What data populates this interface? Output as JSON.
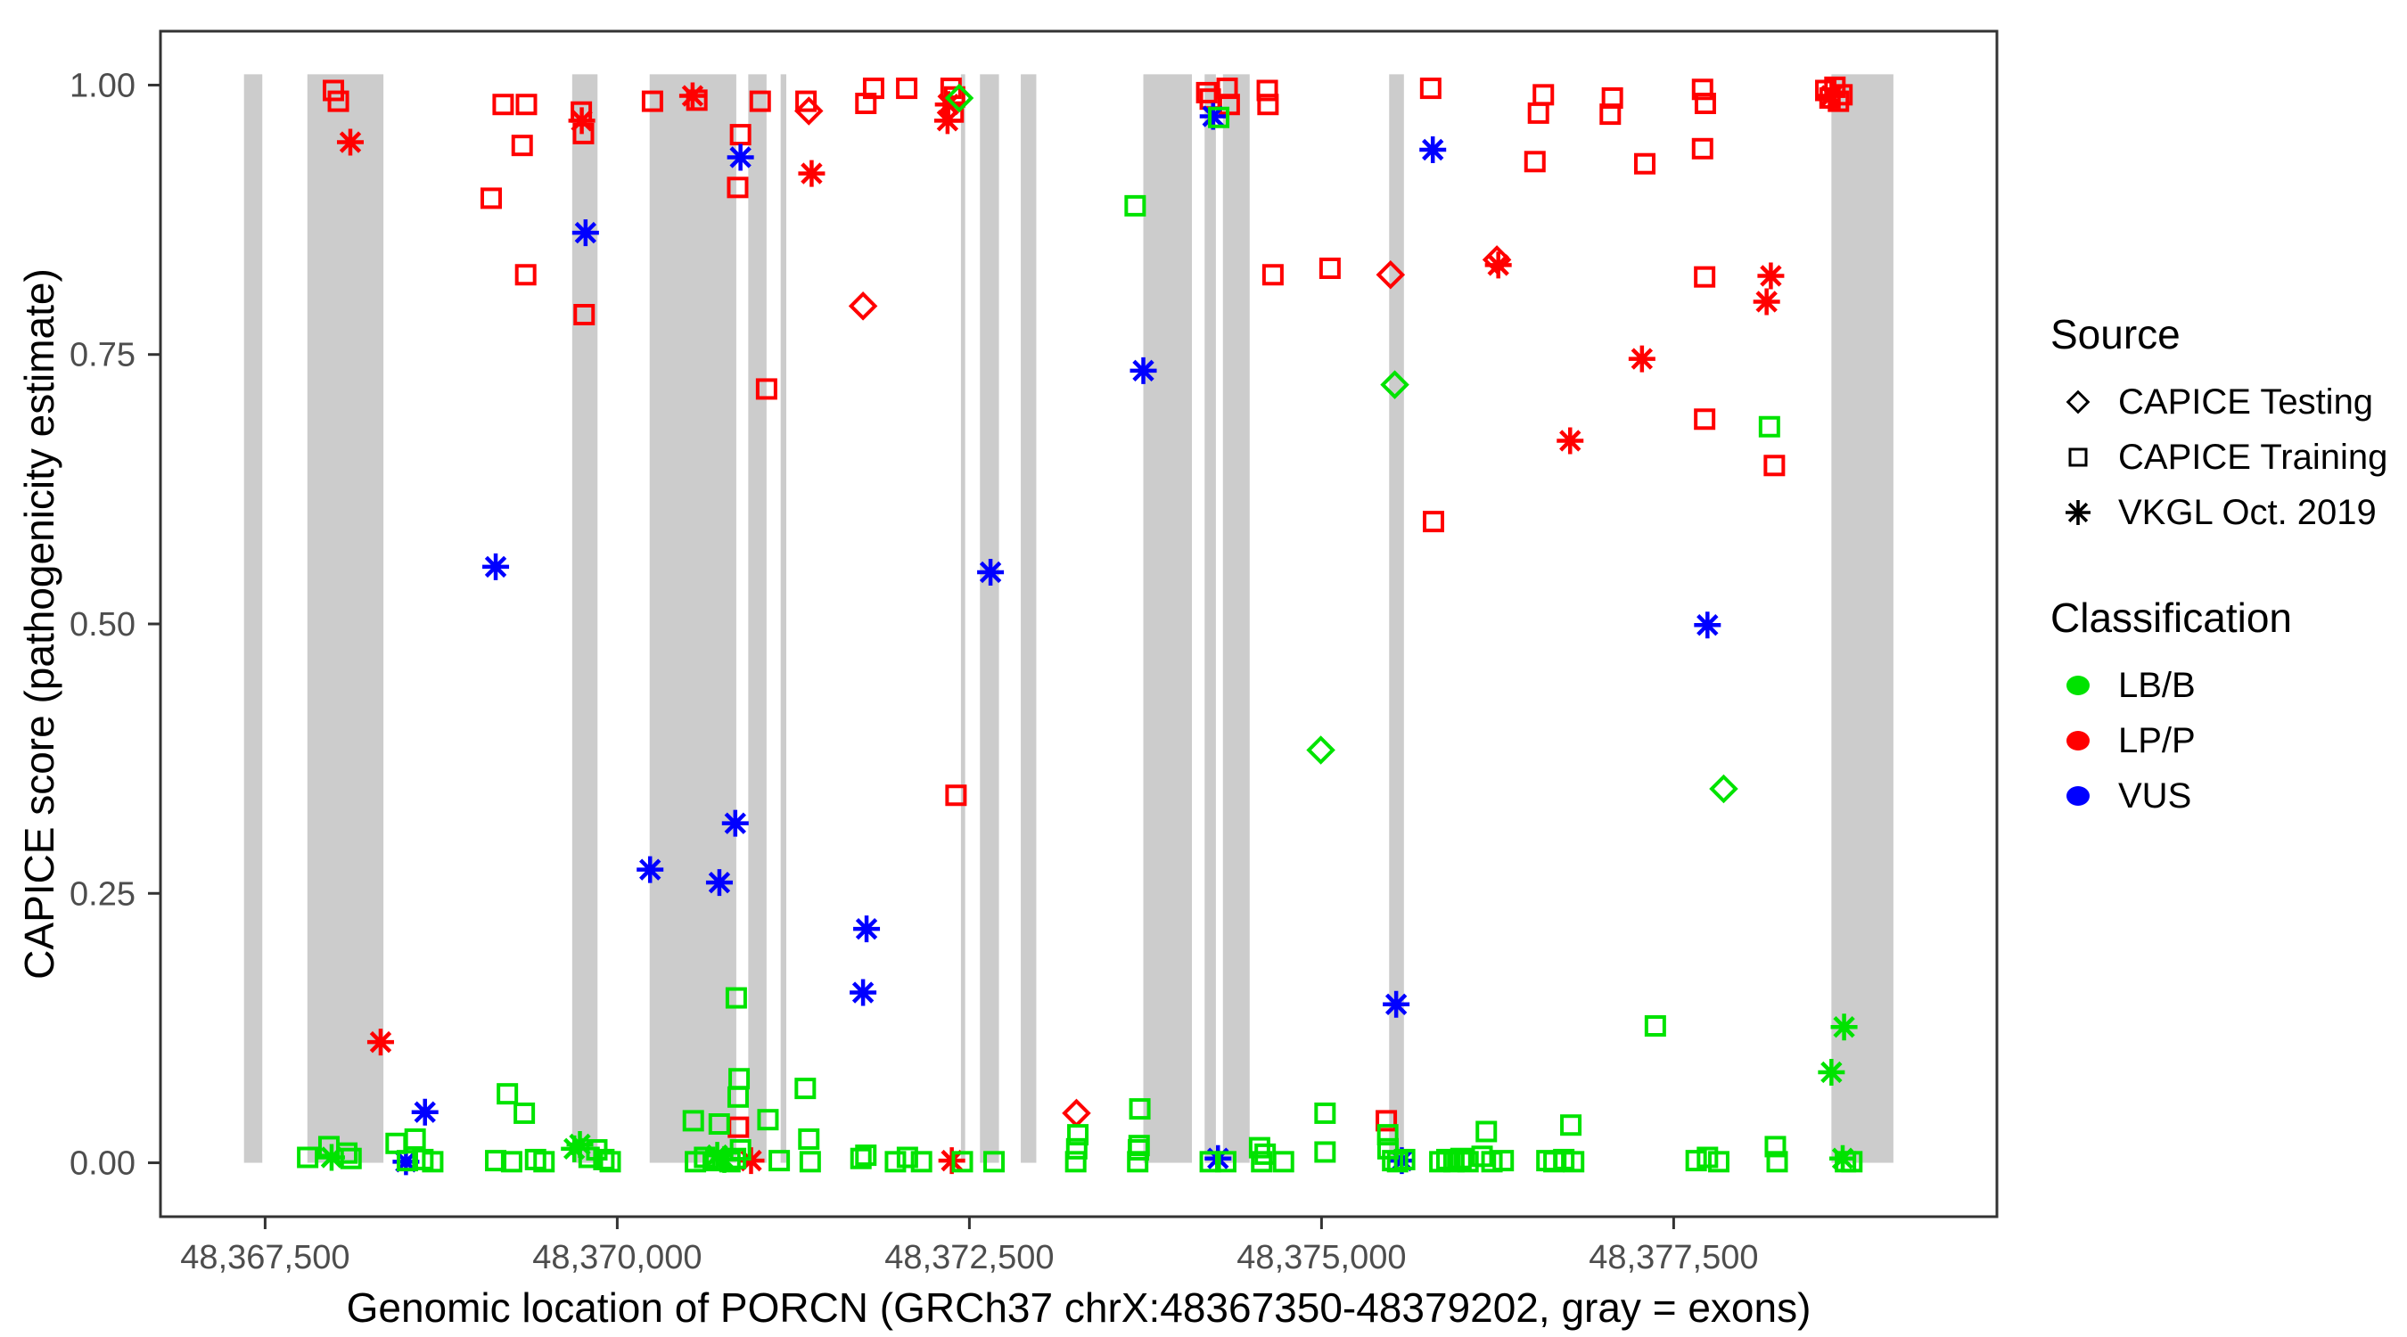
{
  "legend": {
    "source_title": "Source",
    "source_items": [
      "CAPICE Testing",
      "CAPICE Training",
      "VKGL Oct. 2019"
    ],
    "classification_title": "Classification",
    "classification_items": [
      "LB/B",
      "LP/P",
      "VUS"
    ]
  },
  "chart_data": {
    "type": "scatter",
    "title": "",
    "xlabel": "Genomic location of PORCN (GRCh37 chrX:48367350-48379202, gray = exons)",
    "ylabel": "CAPICE score (pathogenicity estimate)",
    "xlim": [
      48366757,
      48379795
    ],
    "ylim": [
      -0.05,
      1.05
    ],
    "grid": false,
    "legend_position": "right",
    "x_ticks": [
      {
        "value": 48367500,
        "label": "48,367,500"
      },
      {
        "value": 48370000,
        "label": "48,370,000"
      },
      {
        "value": 48372500,
        "label": "48,372,500"
      },
      {
        "value": 48375000,
        "label": "48,375,000"
      },
      {
        "value": 48377500,
        "label": "48,377,500"
      }
    ],
    "y_ticks": [
      {
        "value": 0.0,
        "label": "0.00"
      },
      {
        "value": 0.25,
        "label": "0.25"
      },
      {
        "value": 0.5,
        "label": "0.50"
      },
      {
        "value": 0.75,
        "label": "0.75"
      },
      {
        "value": 1.0,
        "label": "1.00"
      }
    ],
    "band_color": "#CCCCCC",
    "band_score_range": [
      0.0,
      1.01
    ],
    "exon_bands": [
      [
        48367350,
        48367480
      ],
      [
        48367800,
        48368340
      ],
      [
        48369680,
        48369860
      ],
      [
        48370230,
        48370845
      ],
      [
        48370930,
        48371060
      ],
      [
        48371160,
        48371200
      ],
      [
        48372440,
        48372470
      ],
      [
        48372575,
        48372710
      ],
      [
        48372865,
        48372975
      ],
      [
        48373735,
        48374080
      ],
      [
        48374170,
        48374250
      ],
      [
        48374300,
        48374490
      ],
      [
        48375480,
        48375585
      ],
      [
        48378620,
        48379060
      ]
    ],
    "shapes": {
      "test": "diamond",
      "train": "square",
      "vkgl": "asterisk"
    },
    "source_names": {
      "test": "CAPICE Testing",
      "train": "CAPICE Training",
      "vkgl": "VKGL Oct. 2019"
    },
    "class_colors": {
      "LB": "#00E300",
      "LP": "#FF0000",
      "VUS": "#0000FF"
    },
    "class_names": {
      "LB": "LB/B",
      "LP": "LP/P",
      "VUS": "VUS"
    },
    "points_format": [
      "genomic_position",
      "capice_score",
      "source",
      "classification"
    ],
    "points": [
      [
        48367985,
        0.995,
        "train",
        "LP"
      ],
      [
        48368020,
        0.985,
        "train",
        "LP"
      ],
      [
        48369105,
        0.895,
        "train",
        "LP"
      ],
      [
        48369190,
        0.982,
        "train",
        "LP"
      ],
      [
        48369325,
        0.944,
        "train",
        "LP"
      ],
      [
        48369350,
        0.824,
        "train",
        "LP"
      ],
      [
        48369355,
        0.982,
        "train",
        "LP"
      ],
      [
        48369745,
        0.975,
        "train",
        "LP"
      ],
      [
        48369760,
        0.955,
        "train",
        "LP"
      ],
      [
        48369765,
        0.787,
        "train",
        "LP"
      ],
      [
        48370250,
        0.985,
        "train",
        "LP"
      ],
      [
        48370565,
        0.986,
        "train",
        "LP"
      ],
      [
        48370855,
        0.905,
        "train",
        "LP"
      ],
      [
        48370860,
        0.033,
        "train",
        "LP"
      ],
      [
        48370875,
        0.954,
        "train",
        "LP"
      ],
      [
        48371015,
        0.985,
        "train",
        "LP"
      ],
      [
        48371060,
        0.718,
        "train",
        "LP"
      ],
      [
        48371340,
        0.985,
        "train",
        "LP"
      ],
      [
        48371765,
        0.983,
        "train",
        "LP"
      ],
      [
        48371820,
        0.997,
        "train",
        "LP"
      ],
      [
        48372055,
        0.997,
        "train",
        "LP"
      ],
      [
        48372370,
        0.997,
        "train",
        "LP"
      ],
      [
        48372385,
        0.975,
        "train",
        "LP"
      ],
      [
        48372395,
        0.989,
        "train",
        "LP"
      ],
      [
        48372405,
        0.341,
        "train",
        "LP"
      ],
      [
        48374185,
        0.993,
        "train",
        "LP"
      ],
      [
        48374210,
        0.987,
        "train",
        "LP"
      ],
      [
        48374330,
        0.997,
        "train",
        "LP"
      ],
      [
        48374345,
        0.982,
        "train",
        "LP"
      ],
      [
        48374615,
        0.995,
        "train",
        "LP"
      ],
      [
        48374620,
        0.982,
        "train",
        "LP"
      ],
      [
        48374655,
        0.824,
        "train",
        "LP"
      ],
      [
        48375060,
        0.83,
        "train",
        "LP"
      ],
      [
        48375460,
        0.039,
        "train",
        "LP"
      ],
      [
        48375775,
        0.997,
        "train",
        "LP"
      ],
      [
        48375795,
        0.595,
        "train",
        "LP"
      ],
      [
        48376515,
        0.929,
        "train",
        "LP"
      ],
      [
        48376540,
        0.974,
        "train",
        "LP"
      ],
      [
        48376575,
        0.991,
        "train",
        "LP"
      ],
      [
        48377050,
        0.973,
        "train",
        "LP"
      ],
      [
        48377065,
        0.988,
        "train",
        "LP"
      ],
      [
        48377295,
        0.927,
        "train",
        "LP"
      ],
      [
        48377705,
        0.996,
        "train",
        "LP"
      ],
      [
        48377705,
        0.941,
        "train",
        "LP"
      ],
      [
        48377720,
        0.822,
        "train",
        "LP"
      ],
      [
        48377720,
        0.69,
        "train",
        "LP"
      ],
      [
        48377725,
        0.983,
        "train",
        "LP"
      ],
      [
        48378215,
        0.647,
        "train",
        "LP"
      ],
      [
        48378580,
        0.995,
        "train",
        "LP"
      ],
      [
        48378610,
        0.988,
        "train",
        "LP"
      ],
      [
        48378645,
        0.998,
        "train",
        "LP"
      ],
      [
        48378670,
        0.985,
        "train",
        "LP"
      ],
      [
        48378695,
        0.991,
        "train",
        "LP"
      ],
      [
        48371360,
        0.976,
        "test",
        "LP"
      ],
      [
        48371745,
        0.795,
        "test",
        "LP"
      ],
      [
        48373260,
        0.046,
        "test",
        "LP"
      ],
      [
        48375490,
        0.824,
        "test",
        "LP"
      ],
      [
        48376245,
        0.838,
        "test",
        "LP"
      ],
      [
        48368105,
        0.947,
        "vkgl",
        "LP"
      ],
      [
        48368320,
        0.112,
        "vkgl",
        "LP"
      ],
      [
        48369748,
        0.967,
        "vkgl",
        "LP"
      ],
      [
        48370535,
        0.99,
        "vkgl",
        "LP"
      ],
      [
        48370950,
        0.002,
        "vkgl",
        "LP"
      ],
      [
        48371380,
        0.918,
        "vkgl",
        "LP"
      ],
      [
        48372345,
        0.967,
        "vkgl",
        "LP"
      ],
      [
        48372350,
        0.982,
        "vkgl",
        "LP"
      ],
      [
        48372375,
        0.002,
        "vkgl",
        "LP"
      ],
      [
        48376255,
        0.833,
        "vkgl",
        "LP"
      ],
      [
        48376765,
        0.67,
        "vkgl",
        "LP"
      ],
      [
        48377275,
        0.746,
        "vkgl",
        "LP"
      ],
      [
        48378160,
        0.799,
        "vkgl",
        "LP"
      ],
      [
        48378190,
        0.823,
        "vkgl",
        "LP"
      ],
      [
        48378620,
        0.99,
        "vkgl",
        "LP"
      ],
      [
        48368500,
        0.001,
        "vkgl",
        "VUS"
      ],
      [
        48368635,
        0.047,
        "vkgl",
        "VUS"
      ],
      [
        48369137,
        0.553,
        "vkgl",
        "VUS"
      ],
      [
        48369775,
        0.863,
        "vkgl",
        "VUS"
      ],
      [
        48370233,
        0.272,
        "vkgl",
        "VUS"
      ],
      [
        48370725,
        0.26,
        "vkgl",
        "VUS"
      ],
      [
        48370838,
        0.315,
        "vkgl",
        "VUS"
      ],
      [
        48370875,
        0.933,
        "vkgl",
        "VUS"
      ],
      [
        48371745,
        0.158,
        "vkgl",
        "VUS"
      ],
      [
        48371770,
        0.217,
        "vkgl",
        "VUS"
      ],
      [
        48372650,
        0.548,
        "vkgl",
        "VUS"
      ],
      [
        48373735,
        0.735,
        "vkgl",
        "VUS"
      ],
      [
        48374230,
        0.971,
        "vkgl",
        "VUS"
      ],
      [
        48374265,
        0.004,
        "vkgl",
        "VUS"
      ],
      [
        48375530,
        0.147,
        "vkgl",
        "VUS"
      ],
      [
        48375570,
        0.002,
        "vkgl",
        "VUS"
      ],
      [
        48375790,
        0.94,
        "vkgl",
        "VUS"
      ],
      [
        48377740,
        0.499,
        "vkgl",
        "VUS"
      ],
      [
        48372428,
        0.988,
        "test",
        "LB"
      ],
      [
        48374995,
        0.383,
        "test",
        "LB"
      ],
      [
        48375520,
        0.722,
        "test",
        "LB"
      ],
      [
        48377855,
        0.347,
        "test",
        "LB"
      ],
      [
        48367972,
        0.005,
        "vkgl",
        "LB"
      ],
      [
        48369695,
        0.013,
        "vkgl",
        "LB"
      ],
      [
        48369735,
        0.017,
        "vkgl",
        "LB"
      ],
      [
        48370710,
        0.007,
        "vkgl",
        "LB"
      ],
      [
        48370760,
        0.003,
        "vkgl",
        "LB"
      ],
      [
        48378620,
        0.084,
        "vkgl",
        "LB"
      ],
      [
        48378700,
        0.004,
        "vkgl",
        "LB"
      ],
      [
        48378710,
        0.126,
        "vkgl",
        "LB"
      ],
      [
        48367802,
        0.005,
        "train",
        "LB"
      ],
      [
        48367953,
        0.015,
        "train",
        "LB"
      ],
      [
        48368080,
        0.009,
        "train",
        "LB"
      ],
      [
        48368110,
        0.004,
        "train",
        "LB"
      ],
      [
        48368430,
        0.018,
        "train",
        "LB"
      ],
      [
        48368510,
        0.002,
        "train",
        "LB"
      ],
      [
        48368565,
        0.022,
        "train",
        "LB"
      ],
      [
        48368620,
        0.003,
        "train",
        "LB"
      ],
      [
        48368690,
        0.001,
        "train",
        "LB"
      ],
      [
        48369137,
        0.002,
        "train",
        "LB"
      ],
      [
        48369220,
        0.064,
        "train",
        "LB"
      ],
      [
        48369250,
        0.001,
        "train",
        "LB"
      ],
      [
        48369340,
        0.046,
        "train",
        "LB"
      ],
      [
        48369420,
        0.003,
        "train",
        "LB"
      ],
      [
        48369480,
        0.001,
        "train",
        "LB"
      ],
      [
        48369800,
        0.005,
        "train",
        "LB"
      ],
      [
        48369855,
        0.012,
        "train",
        "LB"
      ],
      [
        48369905,
        0.003,
        "train",
        "LB"
      ],
      [
        48369950,
        0.001,
        "train",
        "LB"
      ],
      [
        48370540,
        0.039,
        "train",
        "LB"
      ],
      [
        48370555,
        0.001,
        "train",
        "LB"
      ],
      [
        48370620,
        0.005,
        "train",
        "LB"
      ],
      [
        48370700,
        0.002,
        "train",
        "LB"
      ],
      [
        48370724,
        0.036,
        "train",
        "LB"
      ],
      [
        48370800,
        0.001,
        "train",
        "LB"
      ],
      [
        48370840,
        0.004,
        "train",
        "LB"
      ],
      [
        48370845,
        0.153,
        "train",
        "LB"
      ],
      [
        48370858,
        0.061,
        "train",
        "LB"
      ],
      [
        48370865,
        0.078,
        "train",
        "LB"
      ],
      [
        48370875,
        0.012,
        "train",
        "LB"
      ],
      [
        48371070,
        0.04,
        "train",
        "LB"
      ],
      [
        48371150,
        0.002,
        "train",
        "LB"
      ],
      [
        48371335,
        0.069,
        "train",
        "LB"
      ],
      [
        48371360,
        0.022,
        "train",
        "LB"
      ],
      [
        48371370,
        0.001,
        "train",
        "LB"
      ],
      [
        48371730,
        0.004,
        "train",
        "LB"
      ],
      [
        48371765,
        0.007,
        "train",
        "LB"
      ],
      [
        48371975,
        0.001,
        "train",
        "LB"
      ],
      [
        48372060,
        0.005,
        "train",
        "LB"
      ],
      [
        48372160,
        0.001,
        "train",
        "LB"
      ],
      [
        48372450,
        0.001,
        "train",
        "LB"
      ],
      [
        48372675,
        0.001,
        "train",
        "LB"
      ],
      [
        48373255,
        0.001,
        "train",
        "LB"
      ],
      [
        48373262,
        0.013,
        "train",
        "LB"
      ],
      [
        48373270,
        0.026,
        "train",
        "LB"
      ],
      [
        48373677,
        0.888,
        "train",
        "LB"
      ],
      [
        48373695,
        0.001,
        "train",
        "LB"
      ],
      [
        48373700,
        0.012,
        "train",
        "LB"
      ],
      [
        48373705,
        0.016,
        "train",
        "LB"
      ],
      [
        48373710,
        0.05,
        "train",
        "LB"
      ],
      [
        48374210,
        0.001,
        "train",
        "LB"
      ],
      [
        48374270,
        0.97,
        "train",
        "LB"
      ],
      [
        48374320,
        0.001,
        "train",
        "LB"
      ],
      [
        48374560,
        0.014,
        "train",
        "LB"
      ],
      [
        48374575,
        0.001,
        "train",
        "LB"
      ],
      [
        48374600,
        0.008,
        "train",
        "LB"
      ],
      [
        48374730,
        0.001,
        "train",
        "LB"
      ],
      [
        48375025,
        0.046,
        "train",
        "LB"
      ],
      [
        48375025,
        0.01,
        "train",
        "LB"
      ],
      [
        48375470,
        0.026,
        "train",
        "LB"
      ],
      [
        48375472,
        0.013,
        "train",
        "LB"
      ],
      [
        48375505,
        0.002,
        "train",
        "LB"
      ],
      [
        48375540,
        0.001,
        "train",
        "LB"
      ],
      [
        48375590,
        0.003,
        "train",
        "LB"
      ],
      [
        48375840,
        0.001,
        "train",
        "LB"
      ],
      [
        48375890,
        0.003,
        "train",
        "LB"
      ],
      [
        48375940,
        0.001,
        "train",
        "LB"
      ],
      [
        48375990,
        0.004,
        "train",
        "LB"
      ],
      [
        48376040,
        0.001,
        "train",
        "LB"
      ],
      [
        48376140,
        0.006,
        "train",
        "LB"
      ],
      [
        48376170,
        0.029,
        "train",
        "LB"
      ],
      [
        48376210,
        0.001,
        "train",
        "LB"
      ],
      [
        48376290,
        0.002,
        "train",
        "LB"
      ],
      [
        48376600,
        0.002,
        "train",
        "LB"
      ],
      [
        48376650,
        0.001,
        "train",
        "LB"
      ],
      [
        48376720,
        0.003,
        "train",
        "LB"
      ],
      [
        48376770,
        0.035,
        "train",
        "LB"
      ],
      [
        48376790,
        0.001,
        "train",
        "LB"
      ],
      [
        48377370,
        0.127,
        "train",
        "LB"
      ],
      [
        48377660,
        0.002,
        "train",
        "LB"
      ],
      [
        48377740,
        0.005,
        "train",
        "LB"
      ],
      [
        48377820,
        0.001,
        "train",
        "LB"
      ],
      [
        48378180,
        0.683,
        "train",
        "LB"
      ],
      [
        48378222,
        0.015,
        "train",
        "LB"
      ],
      [
        48378235,
        0.001,
        "train",
        "LB"
      ],
      [
        48378720,
        0.001,
        "train",
        "LB"
      ],
      [
        48378765,
        0.001,
        "train",
        "LB"
      ]
    ]
  }
}
